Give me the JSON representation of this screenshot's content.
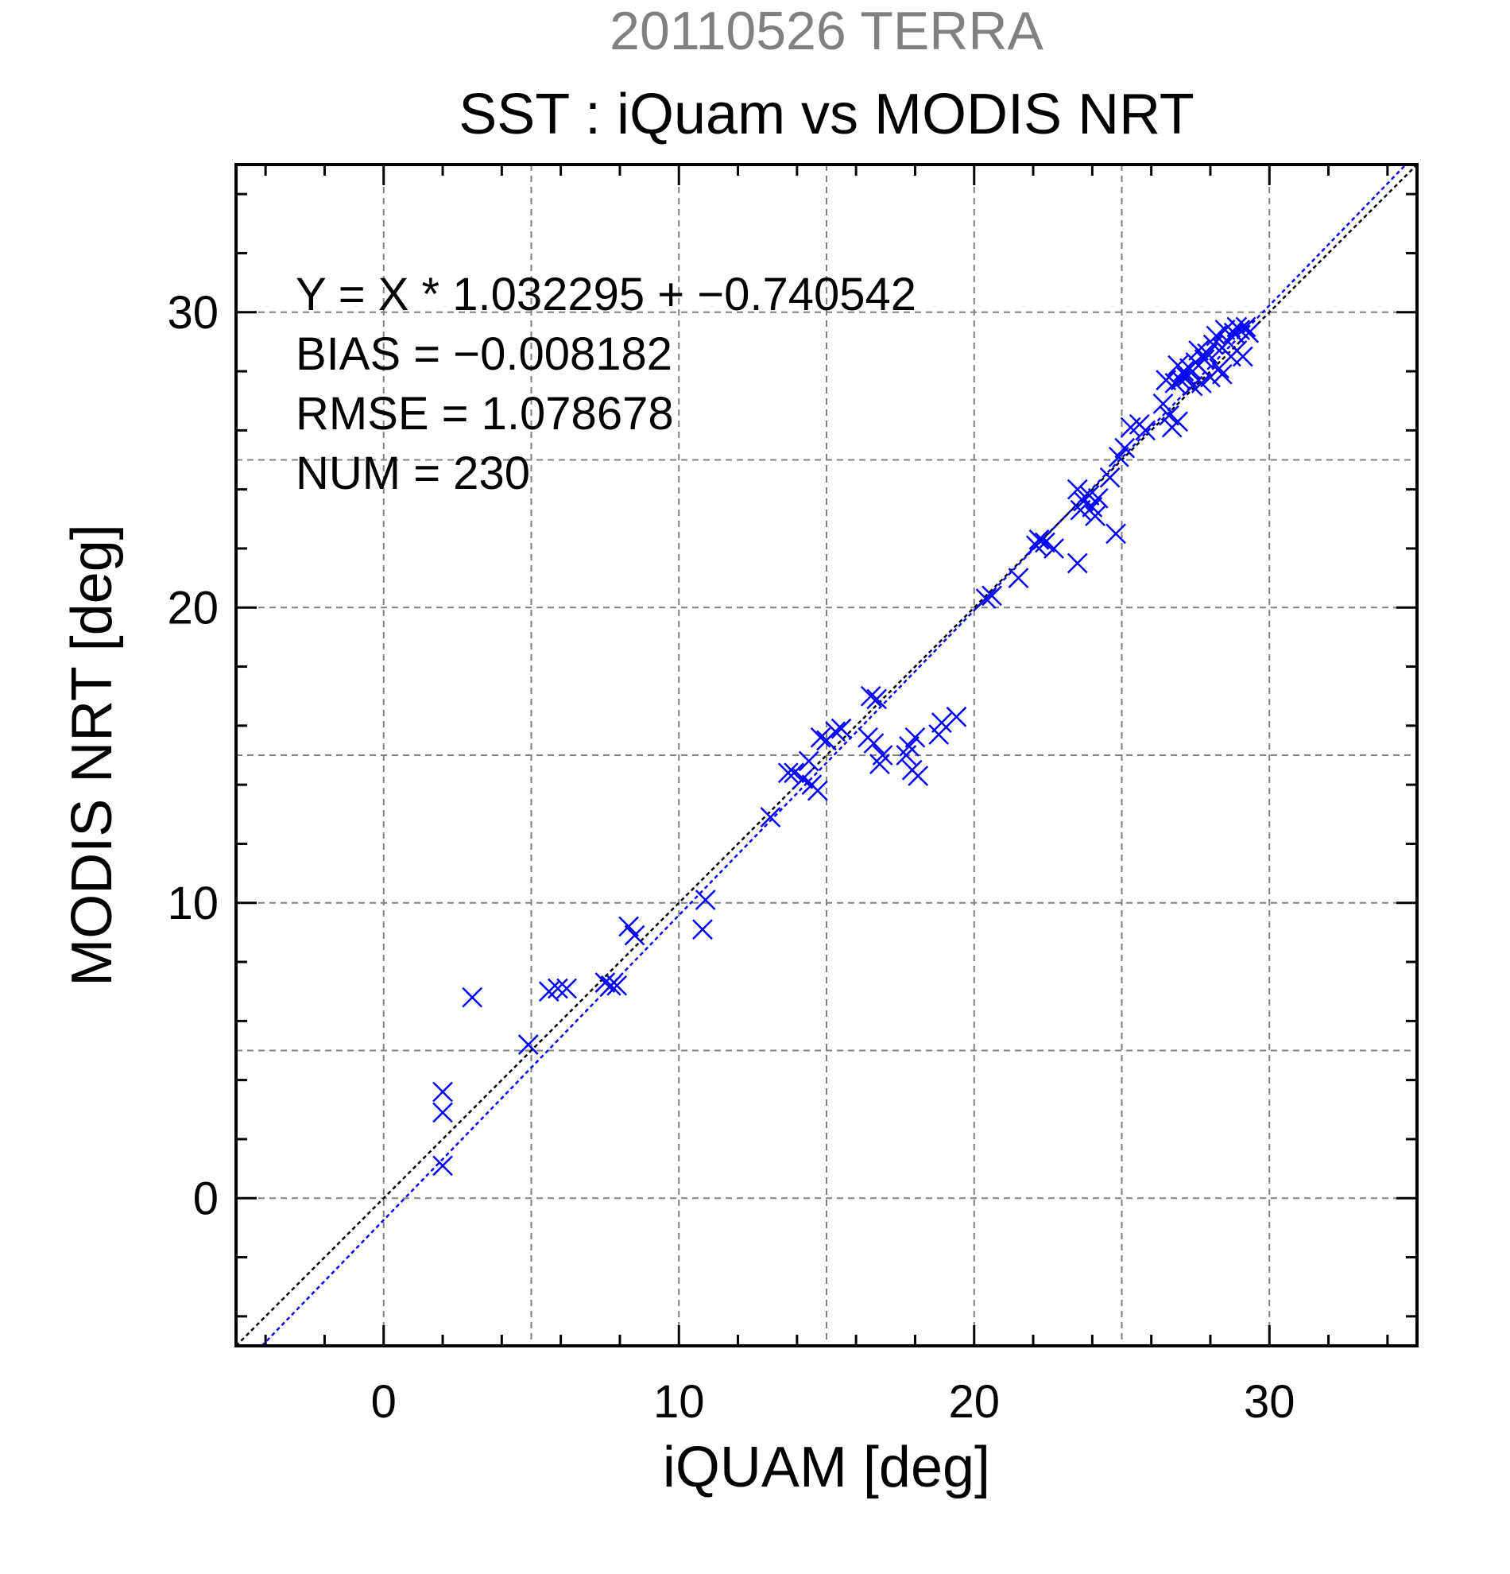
{
  "chart_data": {
    "type": "scatter",
    "header": "20110526 TERRA",
    "title": "SST : iQuam vs MODIS NRT",
    "xlabel": "iQUAM [deg]",
    "ylabel": "MODIS NRT [deg]",
    "xlim": [
      -5,
      35
    ],
    "ylim": [
      -5,
      35
    ],
    "xticks": [
      "0",
      "10",
      "20",
      "30"
    ],
    "yticks": [
      "0",
      "10",
      "20",
      "30"
    ],
    "grid": true,
    "marker_color": "#0000ff",
    "header_color": "#808080",
    "stats": [
      "Y = X * 1.032295 + −0.740542",
      "BIAS = −0.008182",
      "RMSE = 1.078678",
      "NUM = 230"
    ],
    "lines": [
      {
        "kind": "identity",
        "slope": 1.0,
        "intercept": 0.0,
        "color": "#000000"
      },
      {
        "kind": "fit",
        "slope": 1.032295,
        "intercept": -0.740542,
        "color": "#0000ff"
      }
    ],
    "points": [
      [
        2.0,
        1.1
      ],
      [
        2.0,
        2.9
      ],
      [
        2.0,
        3.6
      ],
      [
        3.0,
        6.8
      ],
      [
        4.9,
        5.2
      ],
      [
        5.6,
        7.0
      ],
      [
        5.9,
        7.1
      ],
      [
        6.2,
        7.1
      ],
      [
        7.5,
        7.3
      ],
      [
        7.7,
        7.2
      ],
      [
        7.9,
        7.2
      ],
      [
        8.3,
        9.2
      ],
      [
        8.5,
        8.9
      ],
      [
        10.8,
        9.1
      ],
      [
        10.9,
        10.1
      ],
      [
        13.1,
        12.9
      ],
      [
        13.7,
        14.4
      ],
      [
        13.9,
        14.4
      ],
      [
        14.2,
        14.2
      ],
      [
        14.4,
        14.8
      ],
      [
        14.5,
        14.0
      ],
      [
        14.7,
        13.8
      ],
      [
        14.8,
        15.6
      ],
      [
        15.0,
        15.5
      ],
      [
        15.3,
        15.8
      ],
      [
        15.5,
        15.9
      ],
      [
        16.4,
        15.6
      ],
      [
        16.5,
        17.0
      ],
      [
        16.6,
        15.4
      ],
      [
        16.7,
        16.9
      ],
      [
        16.8,
        14.7
      ],
      [
        16.9,
        15.0
      ],
      [
        17.7,
        15.0
      ],
      [
        17.8,
        15.3
      ],
      [
        17.9,
        14.5
      ],
      [
        18.0,
        15.6
      ],
      [
        18.1,
        14.3
      ],
      [
        18.8,
        15.7
      ],
      [
        18.9,
        16.1
      ],
      [
        19.4,
        16.3
      ],
      [
        20.4,
        20.3
      ],
      [
        20.6,
        20.4
      ],
      [
        21.5,
        21.0
      ],
      [
        22.1,
        22.1
      ],
      [
        22.2,
        22.3
      ],
      [
        22.4,
        22.2
      ],
      [
        22.7,
        22.0
      ],
      [
        23.5,
        21.5
      ],
      [
        23.5,
        24.0
      ],
      [
        23.6,
        23.3
      ],
      [
        23.7,
        23.6
      ],
      [
        23.9,
        23.8
      ],
      [
        24.0,
        23.4
      ],
      [
        24.1,
        23.1
      ],
      [
        24.2,
        23.7
      ],
      [
        24.6,
        24.4
      ],
      [
        24.8,
        22.5
      ],
      [
        24.9,
        25.1
      ],
      [
        25.1,
        25.4
      ],
      [
        25.3,
        26.1
      ],
      [
        25.6,
        26.2
      ],
      [
        25.8,
        26.0
      ],
      [
        26.4,
        26.9
      ],
      [
        26.5,
        27.7
      ],
      [
        26.6,
        26.5
      ],
      [
        26.7,
        26.1
      ],
      [
        26.8,
        27.6
      ],
      [
        26.9,
        28.2
      ],
      [
        26.9,
        26.3
      ],
      [
        27.0,
        27.7
      ],
      [
        27.1,
        28.0
      ],
      [
        27.2,
        27.8
      ],
      [
        27.3,
        28.1
      ],
      [
        27.4,
        27.5
      ],
      [
        27.5,
        28.3
      ],
      [
        27.6,
        28.7
      ],
      [
        27.7,
        27.6
      ],
      [
        27.8,
        28.4
      ],
      [
        27.9,
        28.6
      ],
      [
        28.0,
        27.8
      ],
      [
        28.1,
        28.9
      ],
      [
        28.2,
        29.2
      ],
      [
        28.3,
        28.1
      ],
      [
        28.4,
        28.8
      ],
      [
        28.5,
        29.4
      ],
      [
        28.6,
        29.0
      ],
      [
        28.7,
        28.5
      ],
      [
        28.8,
        29.3
      ],
      [
        28.9,
        28.7
      ],
      [
        29.0,
        29.4
      ],
      [
        29.1,
        28.5
      ],
      [
        29.2,
        29.5
      ],
      [
        28.4,
        27.9
      ],
      [
        28.9,
        29.5
      ],
      [
        29.3,
        29.3
      ]
    ]
  }
}
